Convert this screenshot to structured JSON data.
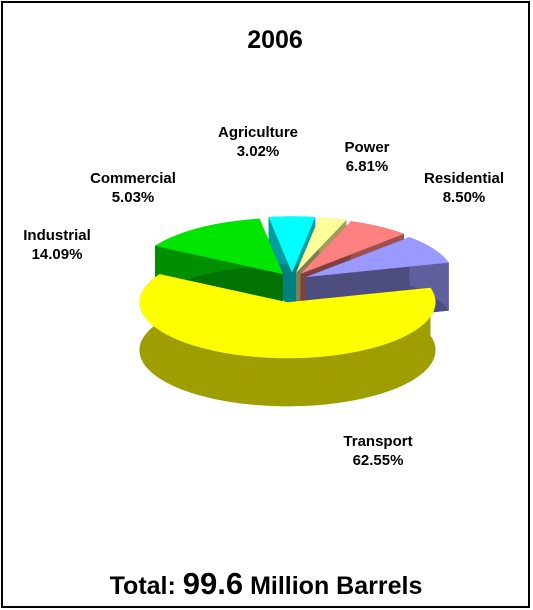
{
  "chart_data": {
    "type": "pie3d",
    "title": "2006",
    "categories": [
      "Transport",
      "Industrial",
      "Commercial",
      "Agriculture",
      "Power",
      "Residential"
    ],
    "values": [
      62.55,
      14.09,
      5.03,
      3.02,
      6.81,
      8.5
    ],
    "value_labels": [
      "62.55%",
      "14.09%",
      "5.03%",
      "3.02%",
      "6.81%",
      "8.50%"
    ],
    "colors": [
      "#ffff00",
      "#00e600",
      "#00ffff",
      "#ffff99",
      "#ff8080",
      "#9999ff"
    ],
    "footer": {
      "prefix": "Total:",
      "value": 99.6,
      "suffix": "Million Barrels"
    }
  }
}
